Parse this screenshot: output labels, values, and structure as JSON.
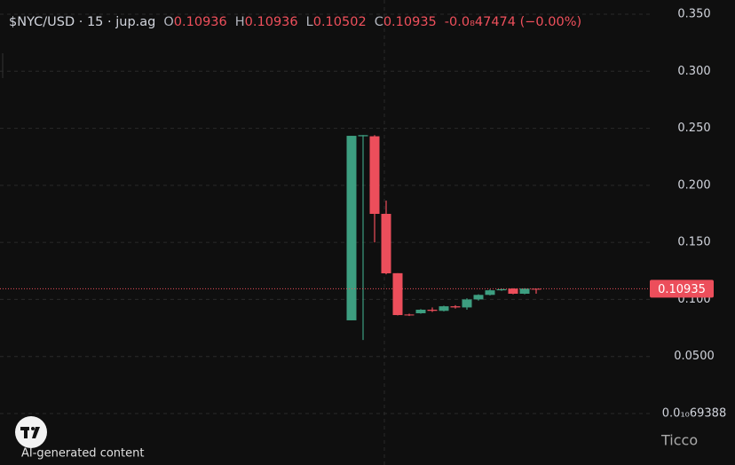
{
  "chart_data": {
    "type": "candlestick",
    "symbol": "$NYC/USD · 15 · jup.ag",
    "ohlc_labels": [
      "O",
      "H",
      "L",
      "C"
    ],
    "ohlc_values": [
      0.10936,
      0.10936,
      0.10502,
      0.10935
    ],
    "change": "-0.0₈47474 (−0.00%)",
    "open": [
      0.0817,
      0.243,
      0.243,
      0.175,
      0.123,
      0.0868,
      0.0879,
      0.091,
      0.09,
      0.094,
      0.093,
      0.1,
      0.104,
      0.108,
      0.1095,
      0.105,
      0.10936
    ],
    "high": [
      0.2434,
      0.244,
      0.244,
      0.1866,
      0.123,
      0.0875,
      0.0915,
      0.093,
      0.0945,
      0.095,
      0.101,
      0.1045,
      0.109,
      0.1095,
      0.1098,
      0.1098,
      0.10936
    ],
    "low": [
      0.0817,
      0.0645,
      0.15,
      0.122,
      0.086,
      0.0855,
      0.0875,
      0.089,
      0.0895,
      0.092,
      0.091,
      0.099,
      0.1035,
      0.1075,
      0.1045,
      0.1045,
      0.10502
    ],
    "close": [
      0.2434,
      0.244,
      0.175,
      0.1229,
      0.0863,
      0.086,
      0.091,
      0.09,
      0.094,
      0.093,
      0.1,
      0.104,
      0.108,
      0.109,
      0.105,
      0.1095,
      0.10935
    ],
    "up_color": "#3d9e80",
    "down_color": "#ec4e5b",
    "ylim": [
      0,
      0.35
    ],
    "yticks": [
      {
        "value": 0.35,
        "label": "0.350"
      },
      {
        "value": 0.3,
        "label": "0.300"
      },
      {
        "value": 0.25,
        "label": "0.250"
      },
      {
        "value": 0.2,
        "label": "0.200"
      },
      {
        "value": 0.15,
        "label": "0.150"
      },
      {
        "value": 0.1,
        "label": "0.100"
      },
      {
        "value": 0.05,
        "label": "0.0500"
      },
      {
        "value": 6.9388e-11,
        "label": "0.0₁₀69388"
      }
    ],
    "grid": true,
    "watermark": "Ticco",
    "footnote": "AI-generated content"
  }
}
